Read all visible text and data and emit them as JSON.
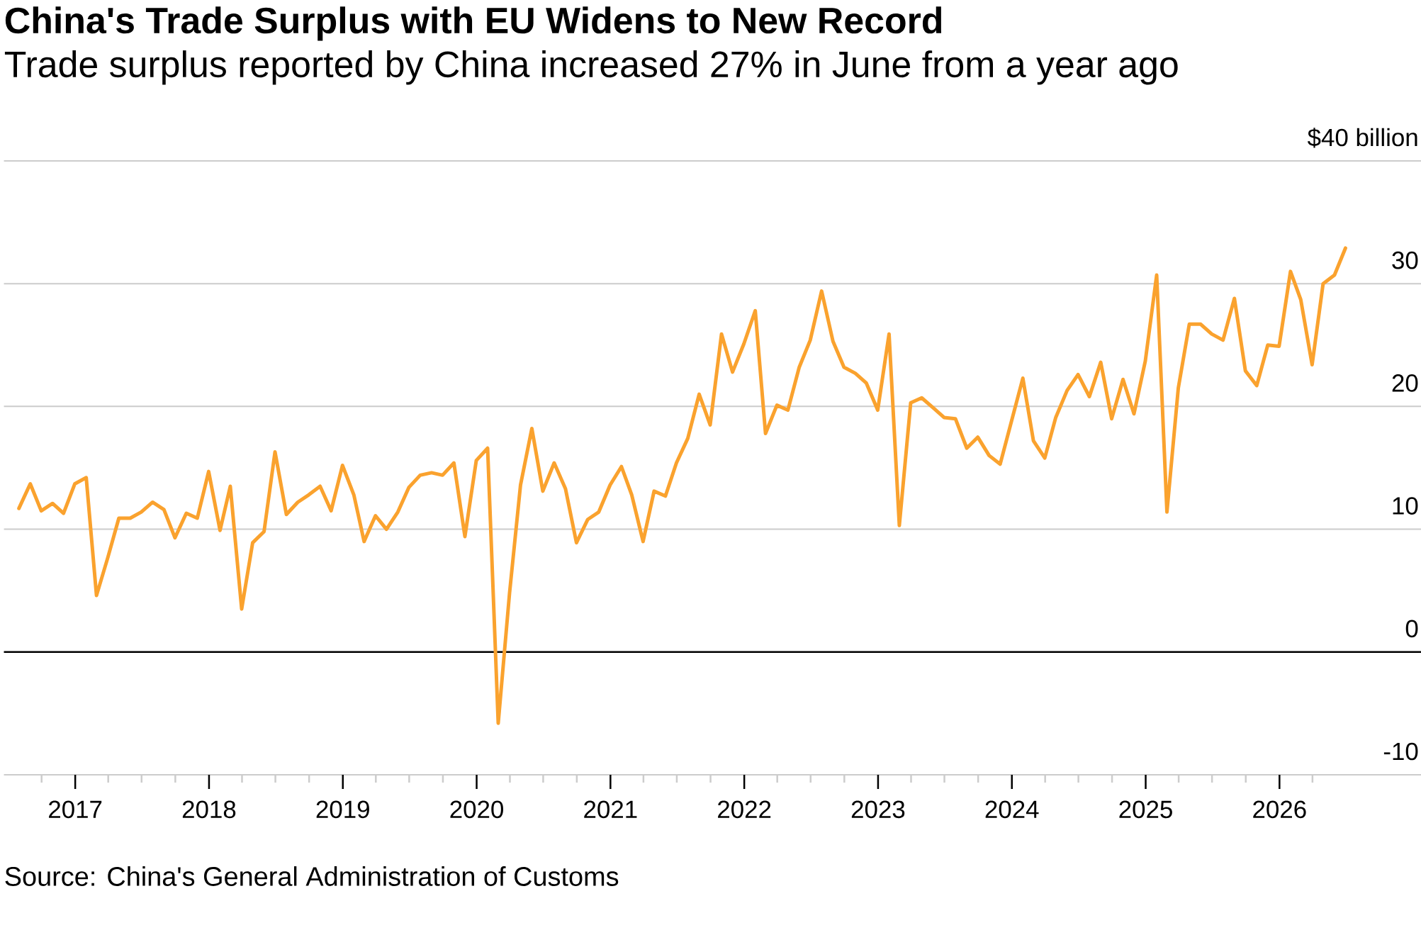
{
  "chart_data": {
    "type": "line",
    "title": "China's Trade Surplus with EU Widens to New Record",
    "subtitle": "Trade surplus reported by China increased 27% in June from a year ago",
    "annotations": [
      "Source: China's General Administration of Customs"
    ],
    "x": [
      "2016-07-31",
      "2016-08-31",
      "2016-09-30",
      "2016-10-31",
      "2016-11-30",
      "2016-12-31",
      "2017-01-31",
      "2017-02-28",
      "2017-03-31",
      "2017-04-30",
      "2017-05-31",
      "2017-06-30",
      "2017-07-31",
      "2017-08-31",
      "2017-09-30",
      "2017-10-31",
      "2017-11-30",
      "2017-12-31",
      "2018-01-31",
      "2018-02-28",
      "2018-03-31",
      "2018-04-30",
      "2018-05-31",
      "2018-06-30",
      "2018-07-31",
      "2018-08-31",
      "2018-09-30",
      "2018-10-31",
      "2018-11-30",
      "2018-12-31",
      "2019-01-31",
      "2019-02-28",
      "2019-03-31",
      "2019-04-30",
      "2019-05-31",
      "2019-06-30",
      "2019-07-31",
      "2019-08-31",
      "2019-09-30",
      "2019-10-31",
      "2019-11-30",
      "2019-12-31",
      "2020-01-31",
      "2020-02-29",
      "2020-03-31",
      "2020-04-30",
      "2020-05-31",
      "2020-06-30",
      "2020-07-31",
      "2020-08-31",
      "2020-09-30",
      "2020-10-31",
      "2020-11-30",
      "2020-12-31",
      "2021-01-31",
      "2021-02-28",
      "2021-03-31",
      "2021-04-30",
      "2021-05-31",
      "2021-06-30",
      "2021-07-31",
      "2021-08-31",
      "2021-09-30",
      "2021-10-31",
      "2021-11-30",
      "2021-12-31",
      "2022-01-31",
      "2022-02-28",
      "2022-03-31",
      "2022-04-30",
      "2022-05-31",
      "2022-06-30",
      "2022-07-31",
      "2022-08-31",
      "2022-09-30",
      "2022-10-31",
      "2022-11-30",
      "2022-12-31",
      "2023-01-31",
      "2023-02-28",
      "2023-03-31",
      "2023-04-30",
      "2023-05-31",
      "2023-06-30",
      "2023-07-31",
      "2023-08-31",
      "2023-09-30",
      "2023-10-31",
      "2023-11-30",
      "2023-12-31",
      "2024-01-31",
      "2024-02-29",
      "2024-03-31",
      "2024-04-30",
      "2024-05-31",
      "2024-06-30",
      "2024-07-31",
      "2024-08-31",
      "2024-09-30",
      "2024-10-31",
      "2024-11-30",
      "2024-12-31",
      "2025-01-31",
      "2025-02-28",
      "2025-03-31",
      "2025-04-30",
      "2025-05-31",
      "2025-06-30",
      "2025-07-31",
      "2025-08-31",
      "2025-09-30",
      "2025-10-31",
      "2025-11-30",
      "2025-12-31",
      "2026-01-31",
      "2026-02-28",
      "2026-03-31",
      "2026-04-30",
      "2026-05-31",
      "2026-06-30"
    ],
    "values": [
      11.7,
      13.7,
      11.5,
      12.1,
      11.3,
      13.7,
      14.2,
      4.6,
      7.7,
      10.9,
      10.9,
      11.4,
      12.2,
      11.6,
      9.3,
      11.3,
      10.9,
      14.7,
      9.9,
      13.5,
      3.5,
      8.9,
      9.8,
      16.3,
      11.2,
      12.2,
      12.8,
      13.5,
      11.5,
      15.2,
      12.8,
      9.0,
      11.1,
      10.0,
      11.4,
      13.4,
      14.4,
      14.6,
      14.4,
      15.4,
      9.4,
      15.6,
      16.6,
      -5.8,
      4.8,
      13.6,
      18.2,
      13.1,
      15.4,
      13.3,
      8.9,
      10.8,
      11.4,
      13.6,
      15.1,
      12.8,
      9.0,
      13.1,
      12.7,
      15.4,
      17.4,
      21.0,
      18.5,
      25.9,
      22.8,
      25.1,
      27.8,
      17.8,
      20.1,
      19.7,
      23.2,
      25.4,
      29.4,
      25.3,
      23.2,
      22.7,
      21.9,
      19.7,
      25.9,
      10.3,
      20.3,
      20.7,
      19.9,
      19.1,
      19.0,
      16.6,
      17.5,
      16.0,
      15.3,
      18.8,
      22.3,
      17.2,
      15.8,
      19.1,
      21.3,
      22.6,
      20.8,
      23.6,
      19.0,
      22.2,
      19.4,
      23.7,
      30.7,
      11.4,
      21.5,
      26.7,
      26.7,
      25.9,
      25.4,
      28.8,
      22.9,
      21.7,
      25.0,
      24.9,
      31.0,
      28.7,
      23.4,
      30.0,
      30.7,
      32.9
    ],
    "color": "#faa22e",
    "xlim": [
      "2016-06-20",
      "2027-01-22"
    ],
    "ylim": [
      -10,
      40
    ],
    "xticks": [
      {
        "value": "2016-10-01",
        "label": null
      },
      {
        "value": "2017-01-01",
        "label": "2017"
      },
      {
        "value": "2017-04-01",
        "label": null
      },
      {
        "value": "2017-07-01",
        "label": null
      },
      {
        "value": "2017-10-01",
        "label": null
      },
      {
        "value": "2018-01-01",
        "label": "2018"
      },
      {
        "value": "2018-04-01",
        "label": null
      },
      {
        "value": "2018-07-01",
        "label": null
      },
      {
        "value": "2018-10-01",
        "label": null
      },
      {
        "value": "2019-01-01",
        "label": "2019"
      },
      {
        "value": "2019-04-01",
        "label": null
      },
      {
        "value": "2019-07-01",
        "label": null
      },
      {
        "value": "2019-10-01",
        "label": null
      },
      {
        "value": "2020-01-01",
        "label": "2020"
      },
      {
        "value": "2020-04-01",
        "label": null
      },
      {
        "value": "2020-07-01",
        "label": null
      },
      {
        "value": "2020-10-01",
        "label": null
      },
      {
        "value": "2021-01-01",
        "label": "2021"
      },
      {
        "value": "2021-04-01",
        "label": null
      },
      {
        "value": "2021-07-01",
        "label": null
      },
      {
        "value": "2021-10-01",
        "label": null
      },
      {
        "value": "2022-01-01",
        "label": "2022"
      },
      {
        "value": "2022-04-01",
        "label": null
      },
      {
        "value": "2022-07-01",
        "label": null
      },
      {
        "value": "2022-10-01",
        "label": null
      },
      {
        "value": "2023-01-01",
        "label": "2023"
      },
      {
        "value": "2023-04-01",
        "label": null
      },
      {
        "value": "2023-07-01",
        "label": null
      },
      {
        "value": "2023-10-01",
        "label": null
      },
      {
        "value": "2024-01-01",
        "label": "2024"
      },
      {
        "value": "2024-04-01",
        "label": null
      },
      {
        "value": "2024-07-01",
        "label": null
      },
      {
        "value": "2024-10-01",
        "label": null
      },
      {
        "value": "2025-01-01",
        "label": "2025"
      },
      {
        "value": "2025-04-01",
        "label": null
      },
      {
        "value": "2025-07-01",
        "label": null
      },
      {
        "value": "2025-10-01",
        "label": null
      },
      {
        "value": "2026-01-01",
        "label": "2026"
      },
      {
        "value": "2026-04-01",
        "label": null
      }
    ],
    "yticks": [
      -10,
      0,
      10,
      20,
      30,
      {
        "value": 40,
        "label": "$40 billion"
      }
    ],
    "grid": "y",
    "ref_lines": [
      {
        "axis": "y",
        "value": 0,
        "color": "#000000"
      }
    ]
  }
}
